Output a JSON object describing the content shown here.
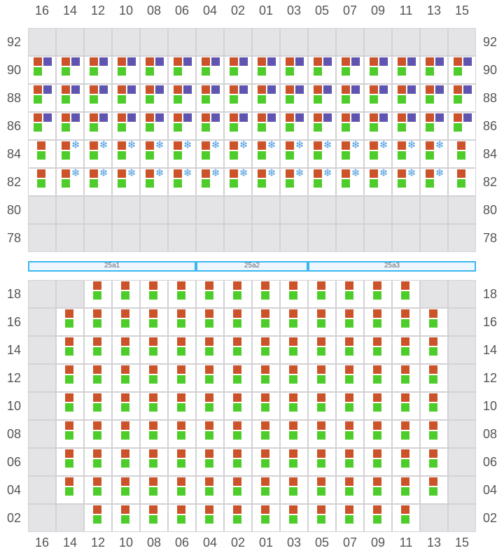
{
  "columns": [
    "16",
    "14",
    "12",
    "10",
    "08",
    "06",
    "04",
    "02",
    "01",
    "03",
    "05",
    "07",
    "09",
    "11",
    "13",
    "15"
  ],
  "colors": {
    "orange": "#cc5229",
    "purple": "#5f55b0",
    "green": "#4ecd2a",
    "reefer": "#4a9be0",
    "empty": "#e4e4e7"
  },
  "icons": {
    "reefer": "snowflake-icon"
  },
  "deck": {
    "rows": [
      {
        "tier": "92",
        "cells": "EEEEEEEEEEEEEEEE"
      },
      {
        "tier": "90",
        "cells": "TTTTTTTTTTTTTTTT"
      },
      {
        "tier": "88",
        "cells": "TTTTTTTTTTTTTTTT"
      },
      {
        "tier": "86",
        "cells": "TTTTTTTTTTTTTTTT"
      },
      {
        "tier": "84",
        "cells": "SRRRRRRRRRRRRRRS"
      },
      {
        "tier": "82",
        "cells": "SRRRRRRRRRRRRRRS"
      },
      {
        "tier": "80",
        "cells": "EEEEEEEEEEEEEEEE"
      },
      {
        "tier": "78",
        "cells": "EEEEEEEEEEEEEEEE"
      }
    ]
  },
  "bays": [
    {
      "label": "25a1",
      "from": 0,
      "to": 6
    },
    {
      "label": "25a2",
      "from": 6,
      "to": 10
    },
    {
      "label": "25a3",
      "from": 10,
      "to": 16
    }
  ],
  "hold": {
    "rows": [
      {
        "tier": "18",
        "cells": "EESSSSSSSSSSSSEE"
      },
      {
        "tier": "16",
        "cells": "ESSSSSSSSSSSSSSE"
      },
      {
        "tier": "14",
        "cells": "ESSSSSSSSSSSSSSE"
      },
      {
        "tier": "12",
        "cells": "ESSSSSSSSSSSSSSE"
      },
      {
        "tier": "10",
        "cells": "ESSSSSSSSSSSSSSE"
      },
      {
        "tier": "08",
        "cells": "ESSSSSSSSSSSSSSE"
      },
      {
        "tier": "06",
        "cells": "ESSSSSSSSSSSSSSE"
      },
      {
        "tier": "04",
        "cells": "ESSSSSSSSSSSSSSE"
      },
      {
        "tier": "02",
        "cells": "EESSSSSSSSSSSSEE"
      }
    ]
  }
}
